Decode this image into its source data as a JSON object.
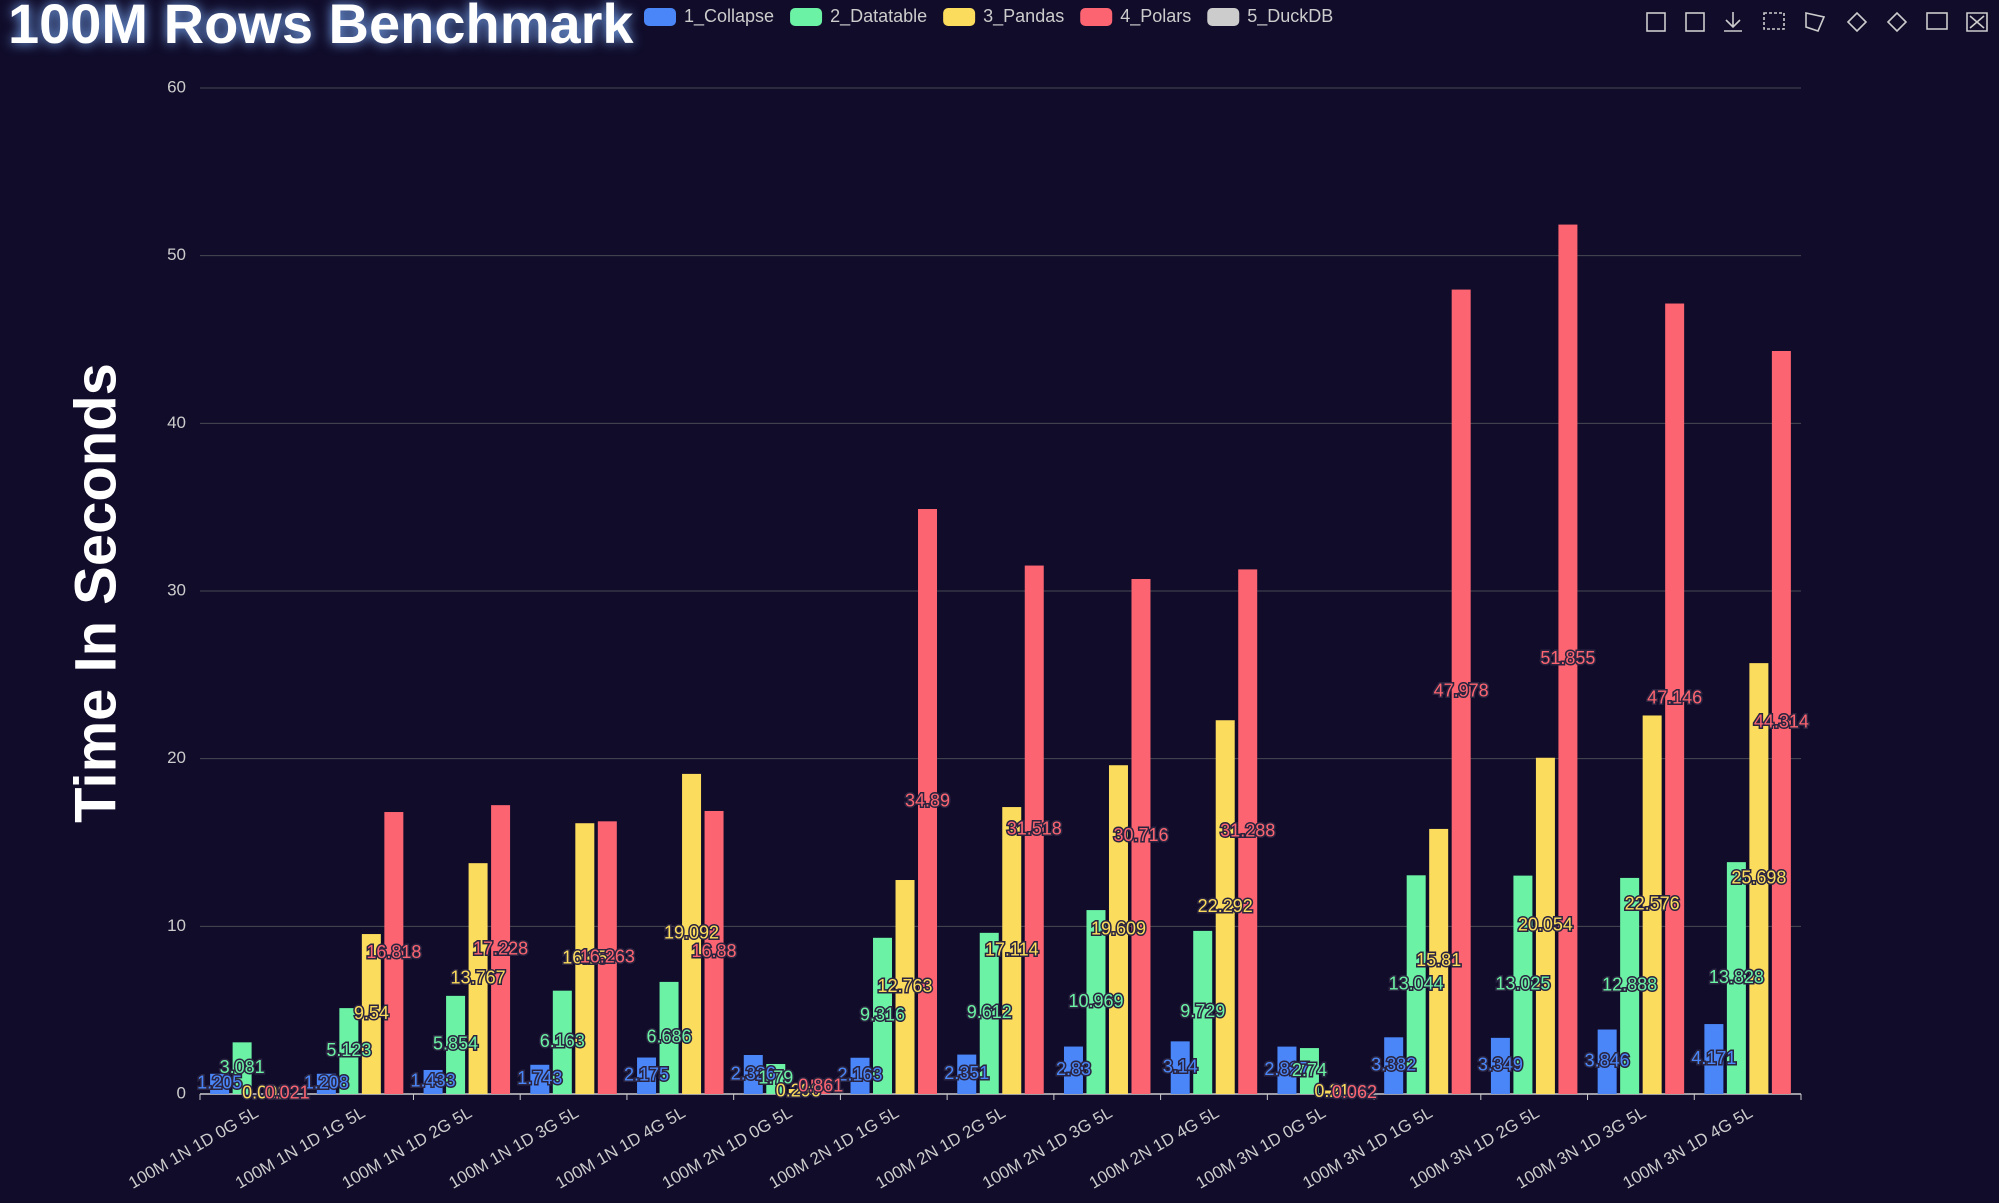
{
  "chart_data": {
    "type": "bar",
    "title": "100M Rows Benchmark",
    "y_label": "Time In Seconds",
    "categories": [
      "100M 1N 1D 0G 5L",
      "100M 1N 1D 1G 5L",
      "100M 1N 1D 2G 5L",
      "100M 1N 1D 3G 5L",
      "100M 1N 1D 4G 5L",
      "100M 2N 1D 0G 5L",
      "100M 2N 1D 1G 5L",
      "100M 2N 1D 2G 5L",
      "100M 2N 1D 3G 5L",
      "100M 2N 1D 4G 5L",
      "100M 3N 1D 0G 5L",
      "100M 3N 1D 1G 5L",
      "100M 3N 1D 2G 5L",
      "100M 3N 1D 3G 5L",
      "100M 3N 1D 4G 5L"
    ],
    "series": [
      {
        "name": "1_Collapse",
        "color": "#4a86f7",
        "values": [
          1.205,
          1.208,
          1.433,
          1.743,
          2.175,
          2.326,
          2.163,
          2.351,
          2.83,
          3.14,
          2.827,
          3.382,
          3.349,
          3.846,
          4.171
        ]
      },
      {
        "name": "2_Datatable",
        "color": "#6bf2a4",
        "values": [
          3.081,
          5.123,
          5.854,
          6.163,
          6.686,
          1.79,
          9.316,
          9.612,
          10.969,
          9.729,
          2.74,
          13.044,
          13.025,
          12.888,
          13.828
        ]
      },
      {
        "name": "3_Pandas",
        "color": "#fcdc5c",
        "values": [
          0.001,
          9.54,
          13.767,
          16.15,
          19.092,
          0.296,
          12.763,
          17.114,
          19.609,
          22.292,
          0.21,
          15.81,
          20.054,
          22.576,
          25.698
        ]
      },
      {
        "name": "4_Polars",
        "color": "#fb6470",
        "values": [
          0.021,
          16.818,
          17.228,
          16.263,
          16.88,
          0.861,
          34.89,
          31.518,
          30.716,
          31.288,
          0.062,
          47.978,
          51.855,
          47.146,
          44.314
        ]
      }
    ],
    "hidden_series": [
      {
        "name": "5_DuckDB",
        "color": "#cccccc"
      }
    ],
    "ylim": [
      0,
      60
    ],
    "yticks": [
      0,
      10,
      20,
      30,
      40,
      50,
      60
    ],
    "grid": true
  }
}
